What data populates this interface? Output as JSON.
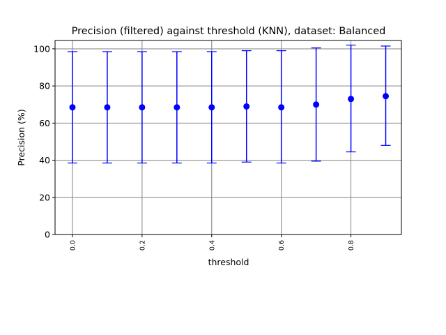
{
  "chart_data": {
    "type": "scatter",
    "title": "Precision (filtered) against threshold (KNN), dataset: Balanced",
    "xlabel": "threshold",
    "ylabel": "Precision (%)",
    "xlim": [
      -0.05,
      0.945
    ],
    "ylim": [
      0,
      104.5
    ],
    "xticks": [
      0.0,
      0.2,
      0.4,
      0.6,
      0.8
    ],
    "xtick_labels": [
      "0.0",
      "0.2",
      "0.4",
      "0.6",
      "0.8"
    ],
    "yticks": [
      0,
      20,
      40,
      60,
      80,
      100
    ],
    "ytick_labels": [
      "0",
      "20",
      "40",
      "60",
      "80",
      "100"
    ],
    "grid": true,
    "color": "#0000ff",
    "marker": "circle",
    "x": [
      0.0,
      0.1,
      0.2,
      0.3,
      0.4,
      0.5,
      0.6,
      0.7,
      0.8,
      0.9
    ],
    "y": [
      68.5,
      68.5,
      68.5,
      68.5,
      68.5,
      69.0,
      68.5,
      70.0,
      73.0,
      74.5
    ],
    "error_low": [
      38.5,
      38.5,
      38.5,
      38.5,
      38.5,
      39.0,
      38.5,
      39.5,
      44.5,
      48.0
    ],
    "error_high": [
      98.5,
      98.5,
      98.5,
      98.5,
      98.5,
      99.0,
      99.0,
      100.5,
      102.0,
      101.5
    ]
  }
}
